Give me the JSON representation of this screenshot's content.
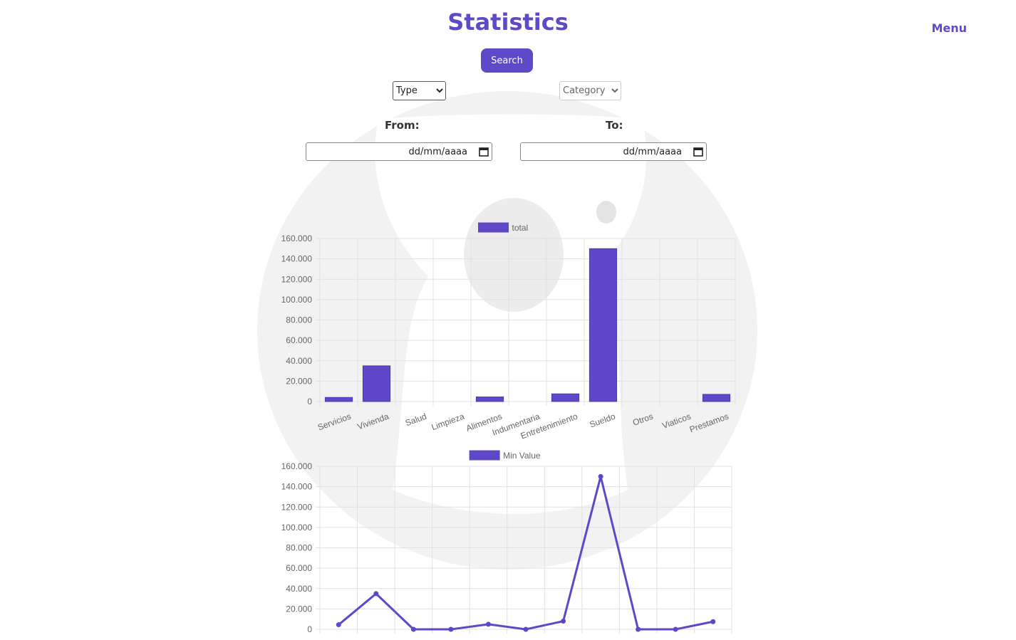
{
  "header": {
    "title": "Statistics",
    "menu_label": "Menu"
  },
  "filters": {
    "search_label": "Search",
    "type_selected": "Type",
    "category_selected": "Category",
    "from_label": "From:",
    "to_label": "To:",
    "date_placeholder_from": "dd/mm/aaaa",
    "date_placeholder_to": "dd/mm/aaaa"
  },
  "colors": {
    "accent": "#5e49c8",
    "bar_fill": "#6047c9"
  },
  "chart_data": [
    {
      "type": "bar",
      "legend": "total",
      "categories": [
        "Servicios",
        "Vivienda",
        "Salud",
        "Limpieza",
        "Alimentos",
        "Indumentaria",
        "Entretenimiento",
        "Sueldo",
        "Otros",
        "Viaticos",
        "Prestamos"
      ],
      "values": [
        4000,
        35000,
        0,
        0,
        4500,
        0,
        7500,
        150000,
        0,
        0,
        7000
      ],
      "y_ticks": [
        "0",
        "20.000",
        "40.000",
        "60.000",
        "80.000",
        "100.000",
        "120.000",
        "140.000",
        "160.000"
      ],
      "ylim": [
        0,
        160000
      ],
      "grid": true,
      "legend_position": "top"
    },
    {
      "type": "line",
      "legend": "Min Value",
      "values": [
        4500,
        35000,
        0,
        0,
        5000,
        0,
        8000,
        150000,
        0,
        0,
        7500
      ],
      "y_ticks": [
        "0",
        "20.000",
        "40.000",
        "60.000",
        "80.000",
        "100.000",
        "120.000",
        "140.000",
        "160.000"
      ],
      "ylim": [
        0,
        160000
      ],
      "grid": true,
      "legend_position": "top"
    }
  ]
}
